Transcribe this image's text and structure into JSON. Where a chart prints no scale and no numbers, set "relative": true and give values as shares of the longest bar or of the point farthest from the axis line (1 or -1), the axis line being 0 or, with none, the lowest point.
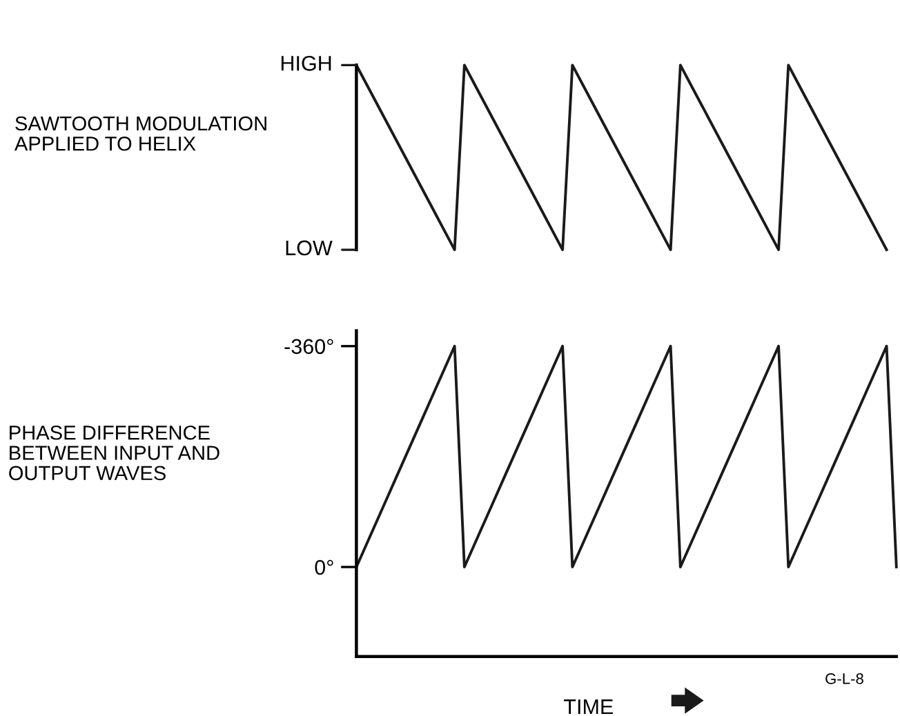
{
  "chart_data": [
    {
      "type": "line",
      "ylabel": "SAWTOOTH MODULATION\nAPPLIED TO HELIX",
      "categories": [
        null,
        null,
        null,
        null,
        null,
        null,
        null,
        null,
        null,
        null,
        null,
        null,
        null,
        null,
        null,
        null,
        null,
        null,
        null,
        null,
        null,
        null,
        null,
        null,
        null,
        null,
        null,
        null,
        null,
        null,
        null,
        null,
        null,
        null,
        null,
        null,
        null,
        null,
        null,
        null,
        null,
        null,
        null,
        null,
        null,
        null,
        null,
        null,
        null,
        null,
        null,
        null,
        null,
        null,
        null
      ],
      "series": [
        {
          "color": "#1a1a1a",
          "values": [
            1,
            0.9,
            0.8,
            0.7,
            0.6,
            0.5,
            0.4,
            0.3,
            0.2,
            0.1,
            0,
            1,
            0.9,
            0.8,
            0.7,
            0.6,
            0.5,
            0.4,
            0.3,
            0.2,
            0.1,
            0,
            1,
            0.9,
            0.8,
            0.7,
            0.6,
            0.5,
            0.4,
            0.3,
            0.2,
            0.1,
            0,
            1,
            0.9,
            0.8,
            0.7,
            0.6,
            0.5,
            0.4,
            0.3,
            0.2,
            0.1,
            0,
            1,
            0.9,
            0.8,
            0.7,
            0.6,
            0.5,
            0.4,
            0.3,
            0.2,
            0.1,
            0
          ]
        }
      ],
      "relative": true,
      "annotations": [
        "HIGH",
        "LOW"
      ],
      "grid": false
    },
    {
      "type": "line",
      "ylabel": "PHASE DIFFERENCE\nBETWEEN INPUT AND\nOUTPUT WAVES",
      "xlabel": "TIME",
      "categories": [
        null,
        null,
        null,
        null,
        null,
        null,
        null,
        null,
        null,
        null,
        null,
        null,
        null,
        null,
        null,
        null,
        null,
        null,
        null,
        null,
        null,
        null,
        null,
        null,
        null,
        null,
        null,
        null,
        null,
        null,
        null,
        null,
        null,
        null,
        null,
        null,
        null,
        null,
        null,
        null,
        null,
        null,
        null,
        null,
        null,
        null,
        null,
        null,
        null,
        null,
        null,
        null,
        null,
        null,
        null,
        null
      ],
      "series": [
        {
          "color": "#1a1a1a",
          "values": [
            0,
            -36,
            -72,
            -108,
            -144,
            -180,
            -216,
            -252,
            -288,
            -324,
            -360,
            0,
            -36,
            -72,
            -108,
            -144,
            -180,
            -216,
            -252,
            -288,
            -324,
            -360,
            0,
            -36,
            -72,
            -108,
            -144,
            -180,
            -216,
            -252,
            -288,
            -324,
            -360,
            0,
            -36,
            -72,
            -108,
            -144,
            -180,
            -216,
            -252,
            -288,
            -324,
            -360,
            0,
            -36,
            -72,
            -108,
            -144,
            -180,
            -216,
            -252,
            -288,
            -324,
            -360,
            0
          ]
        }
      ],
      "ylim": [
        146,
        -385
      ],
      "yticks": [
        {
          "value": -360,
          "label": "-360°"
        },
        {
          "value": 0,
          "label": "0°"
        }
      ],
      "tick_labels": "y",
      "grid": false,
      "annotations": [
        "G-L-8"
      ]
    }
  ]
}
